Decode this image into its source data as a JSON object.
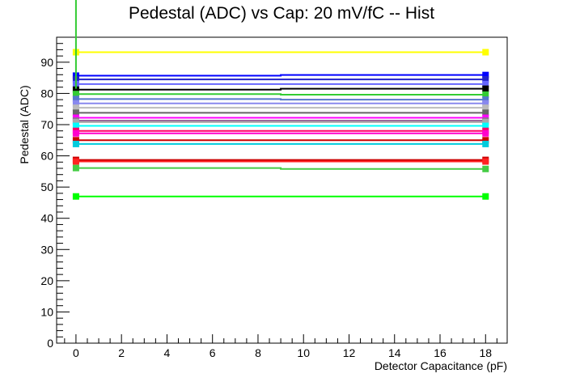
{
  "chart_data": {
    "type": "line",
    "title": "Pedestal (ADC) vs Cap: 20 mV/fC -- Hist",
    "xlabel": "Detector Capacitance (pF)",
    "ylabel": "Pedestal (ADC)",
    "xlim": [
      -0.85,
      18.95
    ],
    "ylim": [
      0,
      98
    ],
    "xticks": [
      0,
      2,
      4,
      6,
      8,
      10,
      12,
      14,
      16,
      18
    ],
    "yticks": [
      0,
      10,
      20,
      30,
      40,
      50,
      60,
      70,
      80,
      90
    ],
    "x": [
      0,
      18
    ],
    "grid": false,
    "legend": "none",
    "marker": "square",
    "series": [
      {
        "color": "#ffff00",
        "values": [
          93.2,
          93.2
        ]
      },
      {
        "color": "#0000ff",
        "values": [
          85.7,
          85.9
        ]
      },
      {
        "color": "#2222cc",
        "values": [
          84.5,
          84.5
        ]
      },
      {
        "color": "#6666ff",
        "values": [
          83.0,
          83.0
        ]
      },
      {
        "color": "#000000",
        "values": [
          81.2,
          81.5
        ]
      },
      {
        "color": "#33cc33",
        "values": [
          79.8,
          79.6
        ]
      },
      {
        "color": "#5577cc",
        "values": [
          78.2,
          78.0
        ]
      },
      {
        "color": "#8888ee",
        "values": [
          76.8,
          76.8
        ]
      },
      {
        "color": "#bbbbbb",
        "values": [
          75.4,
          75.4
        ]
      },
      {
        "color": "#666666",
        "values": [
          73.8,
          73.8
        ]
      },
      {
        "color": "#ff00ff",
        "values": [
          72.2,
          72.2
        ]
      },
      {
        "color": "#996699",
        "values": [
          71.3,
          71.3
        ]
      },
      {
        "color": "#aaaaaa",
        "values": [
          70.8,
          70.8
        ]
      },
      {
        "color": "#00ffff",
        "values": [
          69.6,
          69.6
        ]
      },
      {
        "color": "#ff0066",
        "values": [
          68.0,
          68.0
        ]
      },
      {
        "color": "#ff00cc",
        "values": [
          67.2,
          67.2
        ]
      },
      {
        "color": "#cc0000",
        "values": [
          65.0,
          65.0
        ]
      },
      {
        "color": "#00ccdd",
        "values": [
          63.8,
          63.8
        ]
      },
      {
        "color": "#cc0000",
        "values": [
          58.7,
          58.7
        ]
      },
      {
        "color": "#ff2222",
        "values": [
          58.2,
          58.2
        ]
      },
      {
        "color": "#44cc44",
        "values": [
          56.1,
          55.8
        ]
      },
      {
        "color": "#00ff00",
        "values": [
          47.0,
          47.0
        ]
      }
    ],
    "vertical_line": {
      "color": "#33cc33",
      "x": 0,
      "from": 81.5,
      "to": 98
    }
  }
}
